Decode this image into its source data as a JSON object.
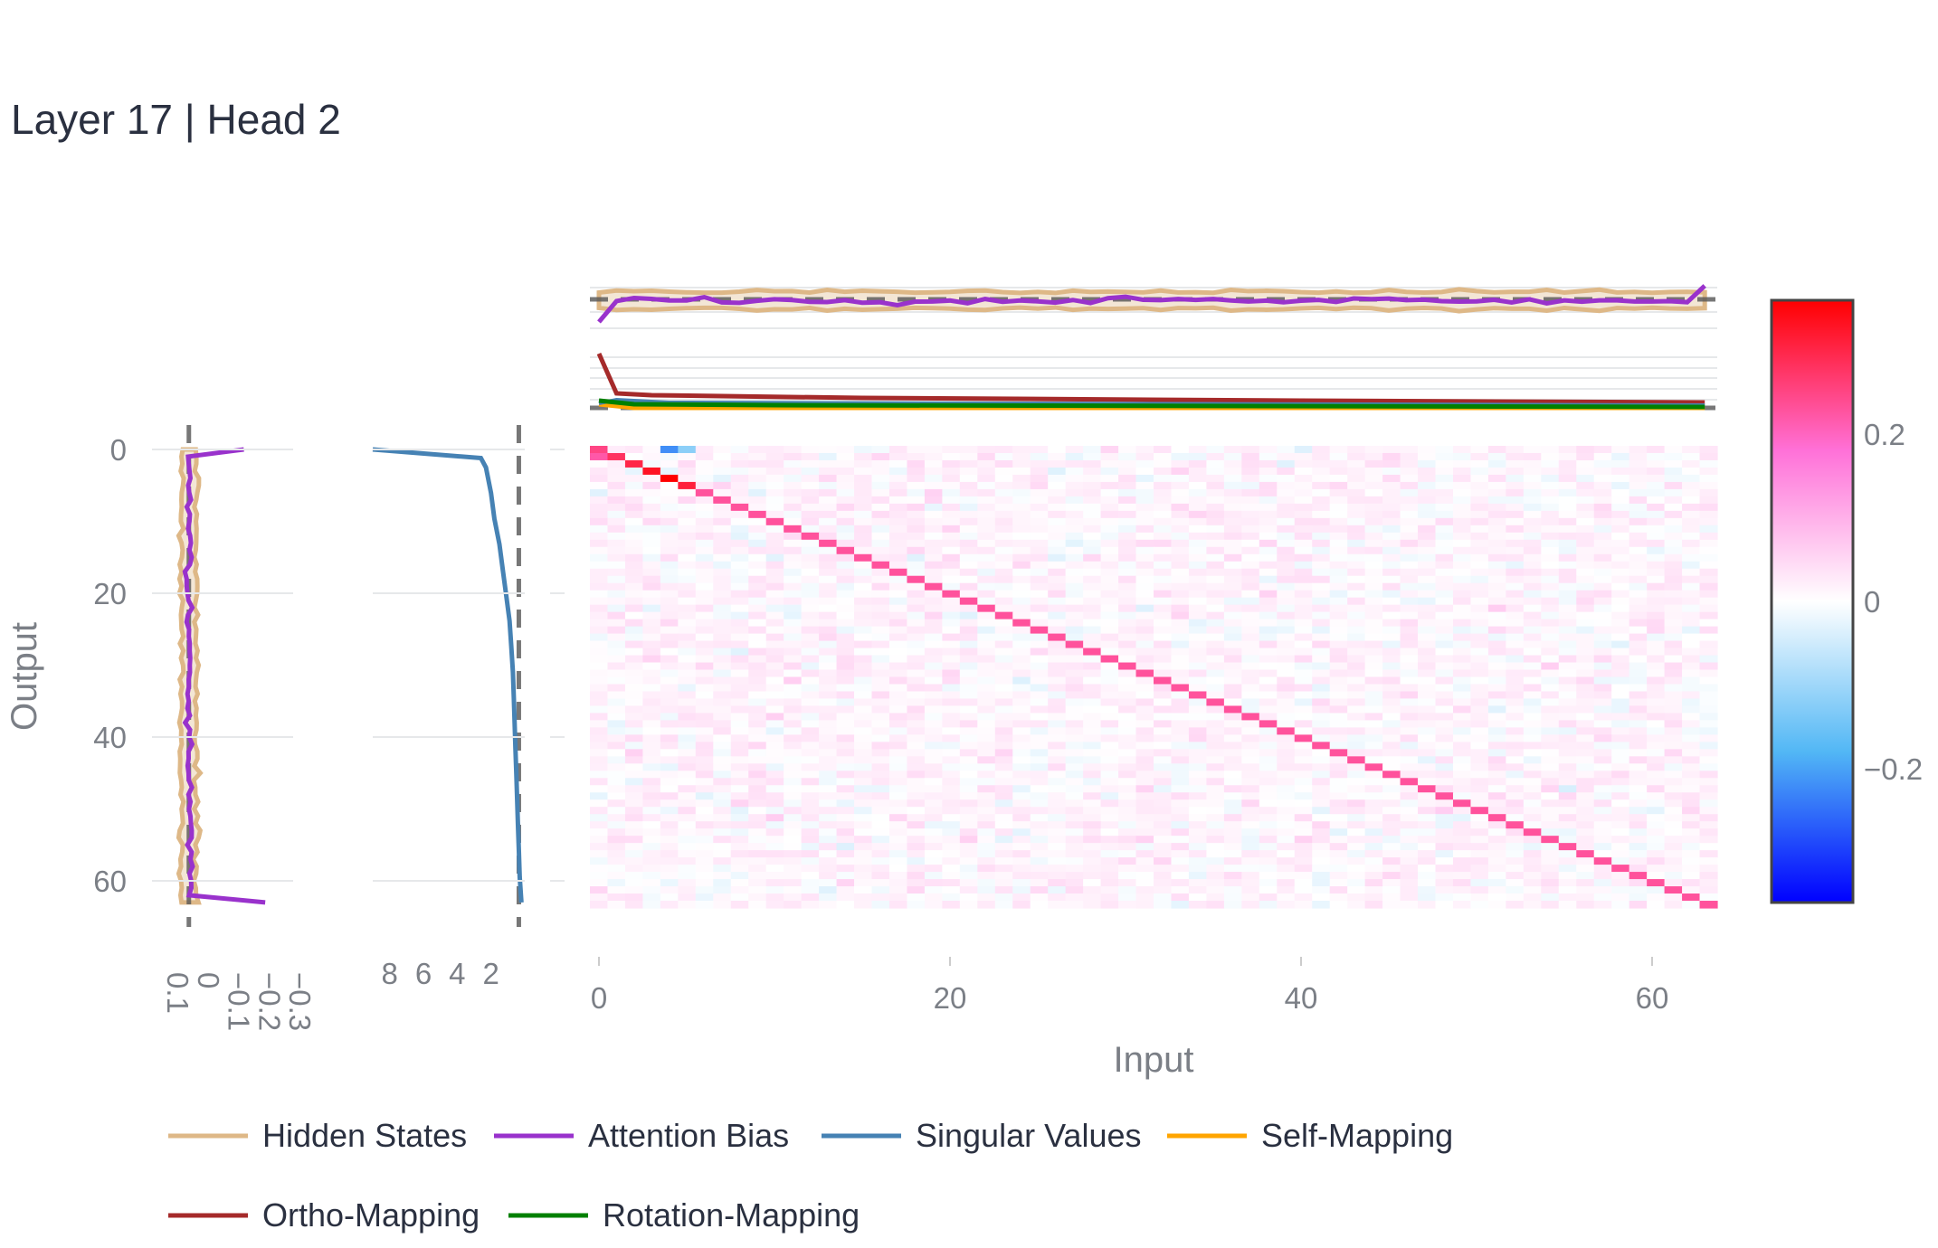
{
  "chart_data": {
    "type": "heatmap",
    "title": "Layer 17 | Head 2",
    "xlabel": "Input",
    "ylabel": "Output",
    "x_ticks": [
      "0",
      "20",
      "40",
      "60"
    ],
    "y_ticks": [
      "0",
      "20",
      "40",
      "60"
    ],
    "colorbar_ticks": [
      "0.2",
      "0",
      "−0.2"
    ],
    "colorbar_range": [
      -0.36,
      0.36
    ],
    "colorscale": [
      "#0000ff",
      "#52b7f5",
      "#ffffff",
      "#ff71d8",
      "#ff0000"
    ],
    "matrix_size": 64,
    "diagonal_value": 0.23,
    "early_diagonal_values": [
      0.25,
      0.28,
      0.3,
      0.33,
      0.36,
      0.31
    ],
    "top_row_cells": [
      {
        "col": 4,
        "value": -0.22
      },
      {
        "col": 5,
        "value": -0.12
      }
    ],
    "left_panel": {
      "x_ticks": [
        "0.1",
        "0",
        "−0.1",
        "−0.2",
        "−0.3"
      ],
      "x_range": [
        0.1,
        -0.3
      ],
      "attention_bias_endpoints": {
        "first": -0.18,
        "last": -0.25
      }
    },
    "singular_values": {
      "x_ticks": [
        "8",
        "6",
        "4",
        "2"
      ],
      "x_range": [
        9.0,
        0.0
      ],
      "values": [
        9.0,
        2.6,
        2.3,
        2.0,
        1.8,
        1.5,
        1.3,
        1.1,
        0.9,
        0.8,
        0.7,
        0.65,
        0.6,
        0.55,
        0.5,
        0.45,
        0.4,
        0.35,
        0.3,
        0.2
      ]
    },
    "legend": [
      {
        "name": "Hidden States",
        "color": "#deb887"
      },
      {
        "name": "Attention Bias",
        "color": "#9932cc"
      },
      {
        "name": "Singular Values",
        "color": "#4682b4"
      },
      {
        "name": "Self-Mapping",
        "color": "#ffa500"
      },
      {
        "name": "Ortho-Mapping",
        "color": "#a52a2a"
      },
      {
        "name": "Rotation-Mapping",
        "color": "#008000"
      }
    ],
    "grid": true,
    "legend_placement": "bottom"
  }
}
